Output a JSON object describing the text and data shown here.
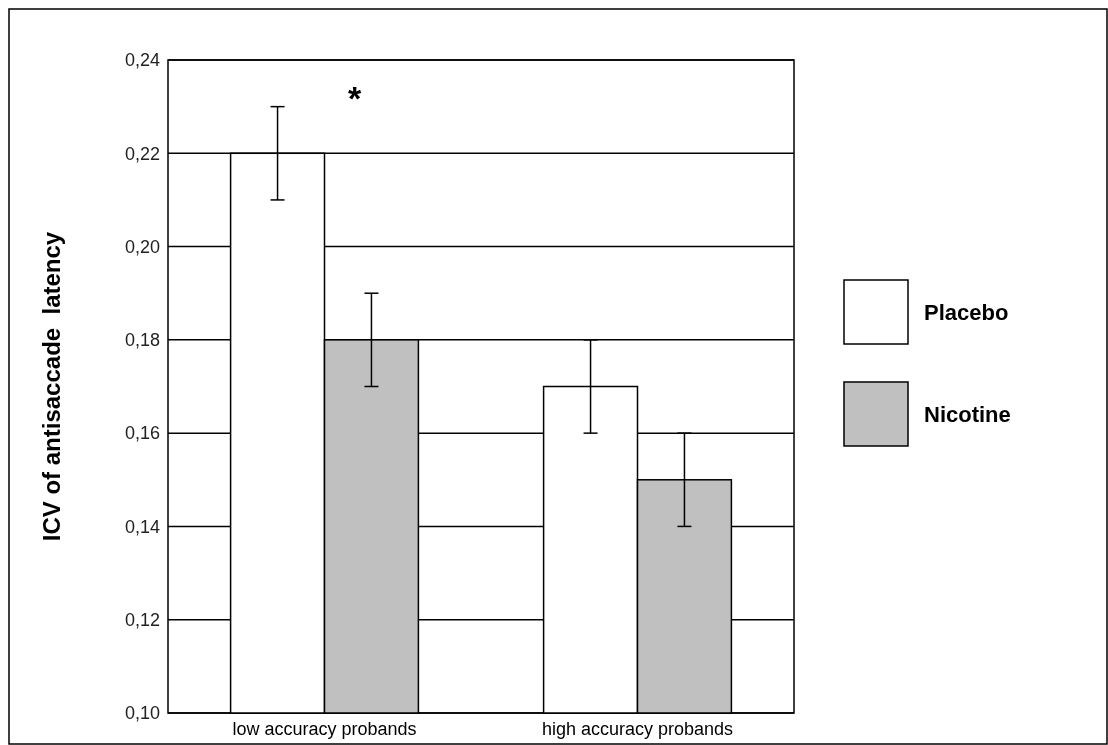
{
  "chart_data": {
    "type": "bar",
    "ylabel": "ICV of antisaccade  latency",
    "categories": [
      "low accuracy probands",
      "high accuracy probands"
    ],
    "series": [
      {
        "name": "Placebo",
        "color": "#ffffff",
        "values": [
          0.22,
          0.17
        ],
        "errors": [
          0.01,
          0.01
        ]
      },
      {
        "name": "Nicotine",
        "color": "#c0c0c0",
        "values": [
          0.18,
          0.15
        ],
        "errors": [
          0.01,
          0.01
        ]
      }
    ],
    "ylim": [
      0.1,
      0.24
    ],
    "yticks": [
      {
        "value": 0.1,
        "label": "0,10"
      },
      {
        "value": 0.12,
        "label": "0,12"
      },
      {
        "value": 0.14,
        "label": "0,14"
      },
      {
        "value": 0.16,
        "label": "0,16"
      },
      {
        "value": 0.18,
        "label": "0,18"
      },
      {
        "value": 0.2,
        "label": "0,20"
      },
      {
        "value": 0.22,
        "label": "0,22"
      },
      {
        "value": 0.24,
        "label": "0,24"
      }
    ],
    "grid": "y",
    "legend": "right",
    "annotations": [
      "*"
    ]
  }
}
